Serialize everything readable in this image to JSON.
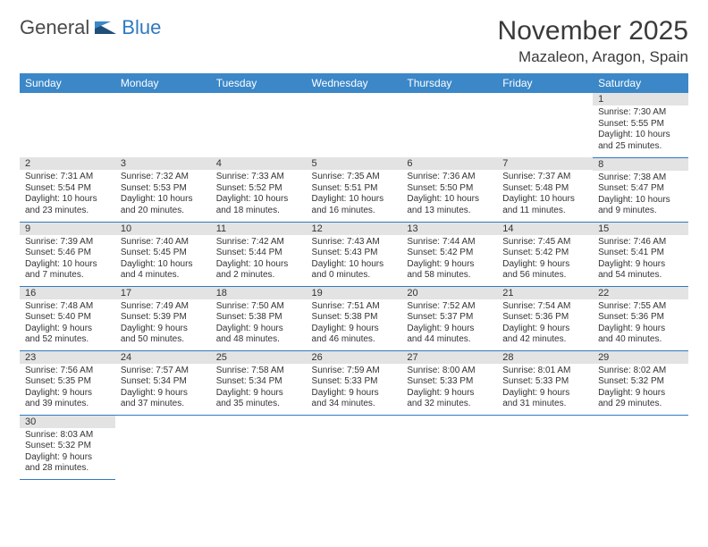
{
  "logo": {
    "part1": "General",
    "part2": "Blue"
  },
  "title": "November 2025",
  "location": "Mazaleon, Aragon, Spain",
  "colors": {
    "header_bg": "#3b87c8",
    "header_text": "#ffffff",
    "daynum_bg": "#e3e3e3",
    "border": "#2f7ac0",
    "logo_gray": "#4a4a4a",
    "logo_blue": "#2f7ac0"
  },
  "weekdays": [
    "Sunday",
    "Monday",
    "Tuesday",
    "Wednesday",
    "Thursday",
    "Friday",
    "Saturday"
  ],
  "weeks": [
    [
      {
        "blank": true
      },
      {
        "blank": true
      },
      {
        "blank": true
      },
      {
        "blank": true
      },
      {
        "blank": true
      },
      {
        "blank": true
      },
      {
        "n": "1",
        "sr": "Sunrise: 7:30 AM",
        "ss": "Sunset: 5:55 PM",
        "d1": "Daylight: 10 hours",
        "d2": "and 25 minutes."
      }
    ],
    [
      {
        "n": "2",
        "sr": "Sunrise: 7:31 AM",
        "ss": "Sunset: 5:54 PM",
        "d1": "Daylight: 10 hours",
        "d2": "and 23 minutes."
      },
      {
        "n": "3",
        "sr": "Sunrise: 7:32 AM",
        "ss": "Sunset: 5:53 PM",
        "d1": "Daylight: 10 hours",
        "d2": "and 20 minutes."
      },
      {
        "n": "4",
        "sr": "Sunrise: 7:33 AM",
        "ss": "Sunset: 5:52 PM",
        "d1": "Daylight: 10 hours",
        "d2": "and 18 minutes."
      },
      {
        "n": "5",
        "sr": "Sunrise: 7:35 AM",
        "ss": "Sunset: 5:51 PM",
        "d1": "Daylight: 10 hours",
        "d2": "and 16 minutes."
      },
      {
        "n": "6",
        "sr": "Sunrise: 7:36 AM",
        "ss": "Sunset: 5:50 PM",
        "d1": "Daylight: 10 hours",
        "d2": "and 13 minutes."
      },
      {
        "n": "7",
        "sr": "Sunrise: 7:37 AM",
        "ss": "Sunset: 5:48 PM",
        "d1": "Daylight: 10 hours",
        "d2": "and 11 minutes."
      },
      {
        "n": "8",
        "sr": "Sunrise: 7:38 AM",
        "ss": "Sunset: 5:47 PM",
        "d1": "Daylight: 10 hours",
        "d2": "and 9 minutes."
      }
    ],
    [
      {
        "n": "9",
        "sr": "Sunrise: 7:39 AM",
        "ss": "Sunset: 5:46 PM",
        "d1": "Daylight: 10 hours",
        "d2": "and 7 minutes."
      },
      {
        "n": "10",
        "sr": "Sunrise: 7:40 AM",
        "ss": "Sunset: 5:45 PM",
        "d1": "Daylight: 10 hours",
        "d2": "and 4 minutes."
      },
      {
        "n": "11",
        "sr": "Sunrise: 7:42 AM",
        "ss": "Sunset: 5:44 PM",
        "d1": "Daylight: 10 hours",
        "d2": "and 2 minutes."
      },
      {
        "n": "12",
        "sr": "Sunrise: 7:43 AM",
        "ss": "Sunset: 5:43 PM",
        "d1": "Daylight: 10 hours",
        "d2": "and 0 minutes."
      },
      {
        "n": "13",
        "sr": "Sunrise: 7:44 AM",
        "ss": "Sunset: 5:42 PM",
        "d1": "Daylight: 9 hours",
        "d2": "and 58 minutes."
      },
      {
        "n": "14",
        "sr": "Sunrise: 7:45 AM",
        "ss": "Sunset: 5:42 PM",
        "d1": "Daylight: 9 hours",
        "d2": "and 56 minutes."
      },
      {
        "n": "15",
        "sr": "Sunrise: 7:46 AM",
        "ss": "Sunset: 5:41 PM",
        "d1": "Daylight: 9 hours",
        "d2": "and 54 minutes."
      }
    ],
    [
      {
        "n": "16",
        "sr": "Sunrise: 7:48 AM",
        "ss": "Sunset: 5:40 PM",
        "d1": "Daylight: 9 hours",
        "d2": "and 52 minutes."
      },
      {
        "n": "17",
        "sr": "Sunrise: 7:49 AM",
        "ss": "Sunset: 5:39 PM",
        "d1": "Daylight: 9 hours",
        "d2": "and 50 minutes."
      },
      {
        "n": "18",
        "sr": "Sunrise: 7:50 AM",
        "ss": "Sunset: 5:38 PM",
        "d1": "Daylight: 9 hours",
        "d2": "and 48 minutes."
      },
      {
        "n": "19",
        "sr": "Sunrise: 7:51 AM",
        "ss": "Sunset: 5:38 PM",
        "d1": "Daylight: 9 hours",
        "d2": "and 46 minutes."
      },
      {
        "n": "20",
        "sr": "Sunrise: 7:52 AM",
        "ss": "Sunset: 5:37 PM",
        "d1": "Daylight: 9 hours",
        "d2": "and 44 minutes."
      },
      {
        "n": "21",
        "sr": "Sunrise: 7:54 AM",
        "ss": "Sunset: 5:36 PM",
        "d1": "Daylight: 9 hours",
        "d2": "and 42 minutes."
      },
      {
        "n": "22",
        "sr": "Sunrise: 7:55 AM",
        "ss": "Sunset: 5:36 PM",
        "d1": "Daylight: 9 hours",
        "d2": "and 40 minutes."
      }
    ],
    [
      {
        "n": "23",
        "sr": "Sunrise: 7:56 AM",
        "ss": "Sunset: 5:35 PM",
        "d1": "Daylight: 9 hours",
        "d2": "and 39 minutes."
      },
      {
        "n": "24",
        "sr": "Sunrise: 7:57 AM",
        "ss": "Sunset: 5:34 PM",
        "d1": "Daylight: 9 hours",
        "d2": "and 37 minutes."
      },
      {
        "n": "25",
        "sr": "Sunrise: 7:58 AM",
        "ss": "Sunset: 5:34 PM",
        "d1": "Daylight: 9 hours",
        "d2": "and 35 minutes."
      },
      {
        "n": "26",
        "sr": "Sunrise: 7:59 AM",
        "ss": "Sunset: 5:33 PM",
        "d1": "Daylight: 9 hours",
        "d2": "and 34 minutes."
      },
      {
        "n": "27",
        "sr": "Sunrise: 8:00 AM",
        "ss": "Sunset: 5:33 PM",
        "d1": "Daylight: 9 hours",
        "d2": "and 32 minutes."
      },
      {
        "n": "28",
        "sr": "Sunrise: 8:01 AM",
        "ss": "Sunset: 5:33 PM",
        "d1": "Daylight: 9 hours",
        "d2": "and 31 minutes."
      },
      {
        "n": "29",
        "sr": "Sunrise: 8:02 AM",
        "ss": "Sunset: 5:32 PM",
        "d1": "Daylight: 9 hours",
        "d2": "and 29 minutes."
      }
    ],
    [
      {
        "n": "30",
        "sr": "Sunrise: 8:03 AM",
        "ss": "Sunset: 5:32 PM",
        "d1": "Daylight: 9 hours",
        "d2": "and 28 minutes."
      },
      {
        "blank": true
      },
      {
        "blank": true
      },
      {
        "blank": true
      },
      {
        "blank": true
      },
      {
        "blank": true
      },
      {
        "blank": true
      }
    ]
  ]
}
